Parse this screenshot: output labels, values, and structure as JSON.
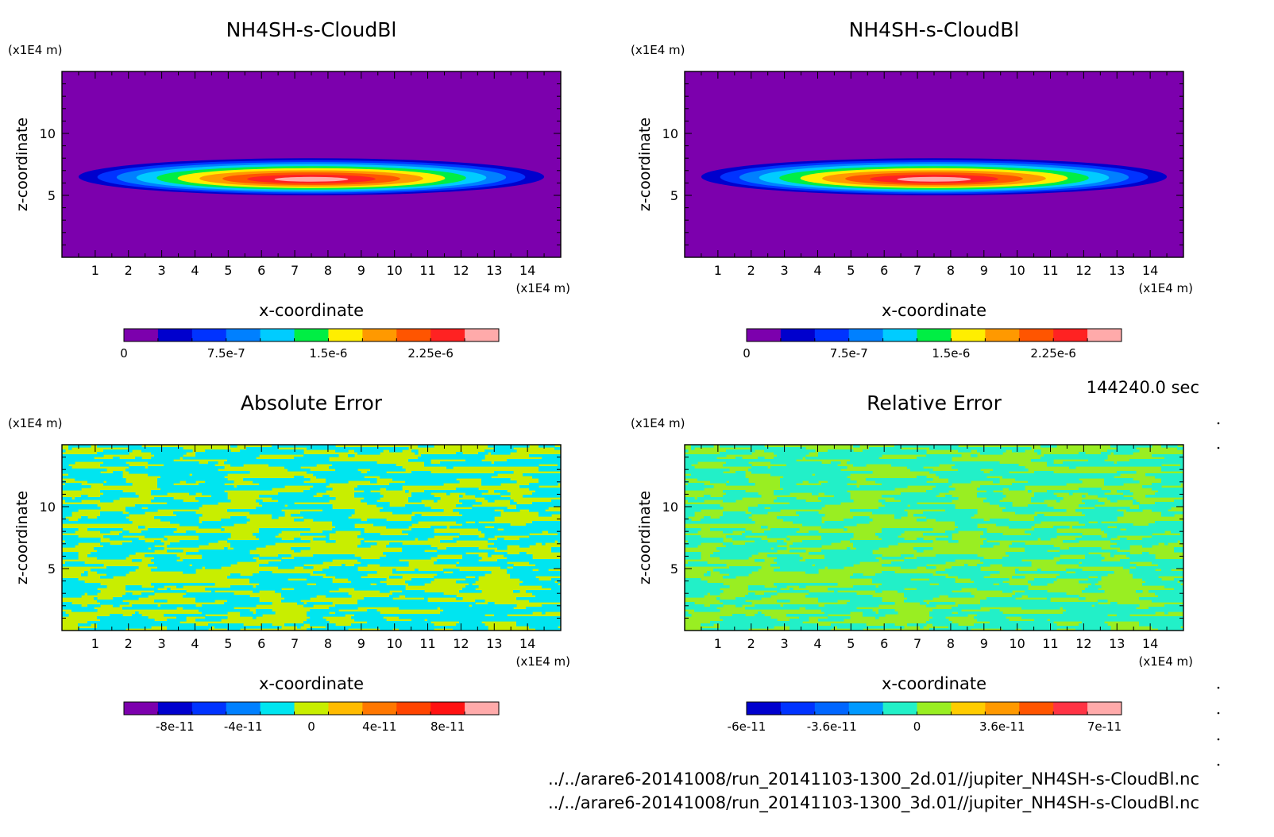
{
  "time_label": "144240.0 sec",
  "file_paths": [
    "../../arare6-20141008/run_20141103-1300_2d.01//jupiter_NH4SH-s-CloudBl.nc",
    "../../arare6-20141008/run_20141103-1300_3d.01//jupiter_NH4SH-s-CloudBl.nc"
  ],
  "chart_data": [
    {
      "type": "heatmap",
      "title": "NH4SH-s-CloudBl",
      "xlabel": "x-coordinate",
      "ylabel": "z-coordinate",
      "x_unit": "(x1E4 m)",
      "y_unit": "(x1E4 m)",
      "xlim": [
        0,
        15
      ],
      "ylim": [
        0,
        15
      ],
      "x_ticks": [
        "1",
        "2",
        "3",
        "4",
        "5",
        "6",
        "7",
        "8",
        "9",
        "10",
        "11",
        "12",
        "13",
        "14"
      ],
      "y_ticks": [
        "5",
        "10"
      ],
      "background_color": "#7c00ad",
      "cloud": {
        "center_x": 7.5,
        "center_z": 6.5,
        "half_width": 7.0,
        "half_height": 1.5
      },
      "colorbar": {
        "colors": [
          "#7c00ad",
          "#0000cd",
          "#0033ff",
          "#0080ff",
          "#00ccff",
          "#00ee44",
          "#ffee00",
          "#ff9900",
          "#ff5500",
          "#ff2222",
          "#ffaaaa"
        ],
        "tick_labels": [
          "0",
          "7.5e-7",
          "1.5e-6",
          "2.25e-6"
        ]
      }
    },
    {
      "type": "heatmap",
      "title": "NH4SH-s-CloudBl",
      "xlabel": "x-coordinate",
      "ylabel": "z-coordinate",
      "x_unit": "(x1E4 m)",
      "y_unit": "(x1E4 m)",
      "xlim": [
        0,
        15
      ],
      "ylim": [
        0,
        15
      ],
      "x_ticks": [
        "1",
        "2",
        "3",
        "4",
        "5",
        "6",
        "7",
        "8",
        "9",
        "10",
        "11",
        "12",
        "13",
        "14"
      ],
      "y_ticks": [
        "5",
        "10"
      ],
      "background_color": "#7c00ad",
      "cloud": {
        "center_x": 7.5,
        "center_z": 6.5,
        "half_width": 7.0,
        "half_height": 1.5
      },
      "colorbar": {
        "colors": [
          "#7c00ad",
          "#0000cd",
          "#0033ff",
          "#0080ff",
          "#00ccff",
          "#00ee44",
          "#ffee00",
          "#ff9900",
          "#ff5500",
          "#ff2222",
          "#ffaaaa"
        ],
        "tick_labels": [
          "0",
          "7.5e-7",
          "1.5e-6",
          "2.25e-6"
        ]
      }
    },
    {
      "type": "heatmap",
      "title": "Absolute Error",
      "xlabel": "x-coordinate",
      "ylabel": "z-coordinate",
      "x_unit": "(x1E4 m)",
      "y_unit": "(x1E4 m)",
      "xlim": [
        0,
        15
      ],
      "ylim": [
        0,
        15
      ],
      "x_ticks": [
        "1",
        "2",
        "3",
        "4",
        "5",
        "6",
        "7",
        "8",
        "9",
        "10",
        "11",
        "12",
        "13",
        "14"
      ],
      "y_ticks": [
        "5",
        "10"
      ],
      "field_colors": [
        "#00e5f0",
        "#c8ee00"
      ],
      "colorbar": {
        "colors": [
          "#7c00ad",
          "#0000cd",
          "#0033ff",
          "#0080ff",
          "#00e5f0",
          "#c8ee00",
          "#ffbb00",
          "#ff7700",
          "#ff4400",
          "#ff1111",
          "#ffaaaa"
        ],
        "tick_labels": [
          "-8e-11",
          "-4e-11",
          "0",
          "4e-11",
          "8e-11"
        ]
      }
    },
    {
      "type": "heatmap",
      "title": "Relative Error",
      "xlabel": "x-coordinate",
      "ylabel": "z-coordinate",
      "x_unit": "(x1E4 m)",
      "y_unit": "(x1E4 m)",
      "xlim": [
        0,
        15
      ],
      "ylim": [
        0,
        15
      ],
      "x_ticks": [
        "1",
        "2",
        "3",
        "4",
        "5",
        "6",
        "7",
        "8",
        "9",
        "10",
        "11",
        "12",
        "13",
        "14"
      ],
      "y_ticks": [
        "5",
        "10"
      ],
      "field_colors": [
        "#22f0c8",
        "#99ee22"
      ],
      "colorbar": {
        "colors": [
          "#0000cd",
          "#0033ff",
          "#0066ff",
          "#0099ff",
          "#22f0c8",
          "#99ee22",
          "#ffcc00",
          "#ff9900",
          "#ff5500",
          "#ff3344",
          "#ffaaaa"
        ],
        "tick_labels": [
          "-6e-11",
          "-3.6e-11",
          "0",
          "3.6e-11",
          "7e-11"
        ]
      }
    }
  ]
}
